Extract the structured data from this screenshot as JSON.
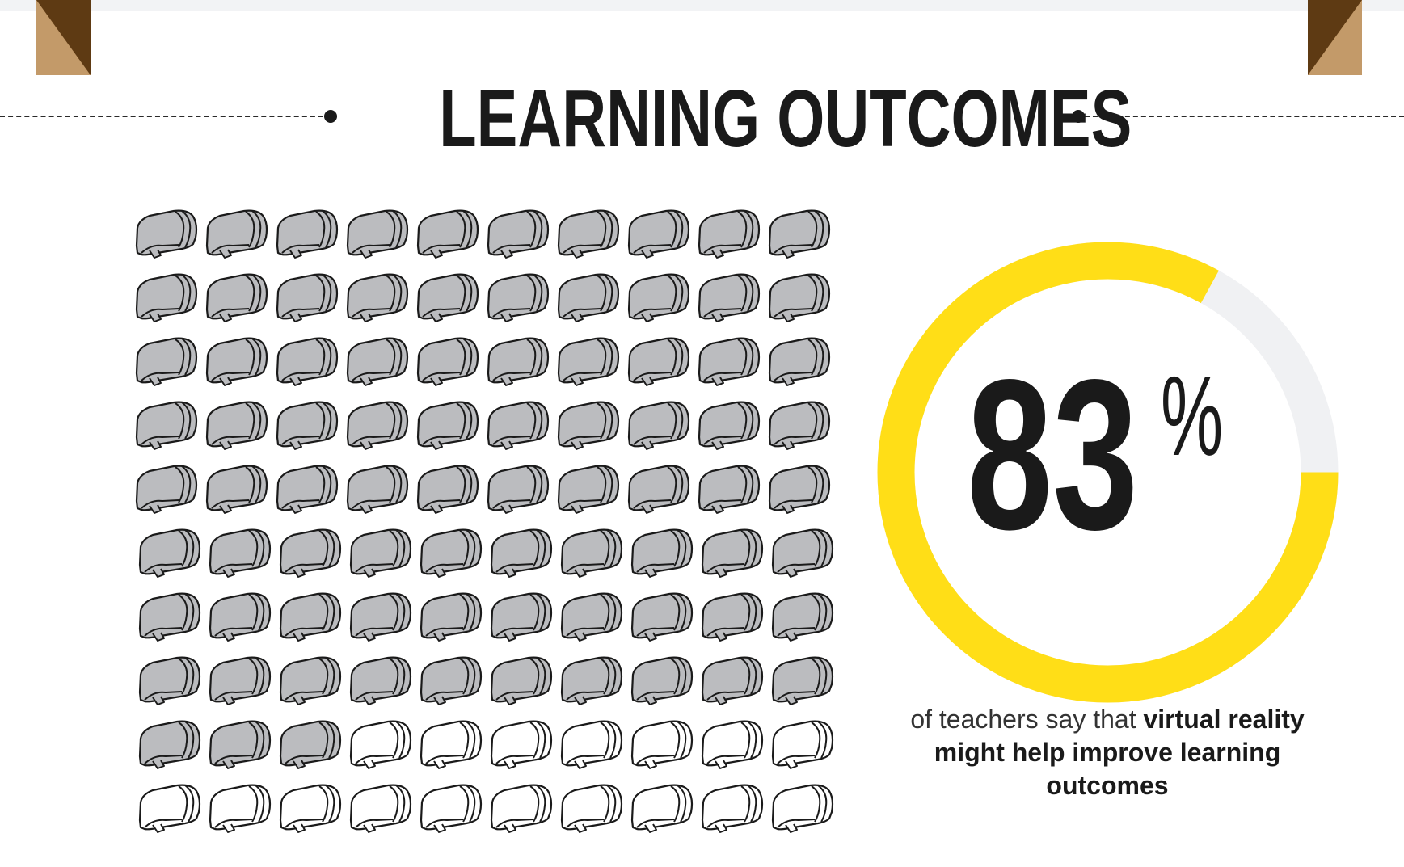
{
  "title": "LEARNING OUTCOMES",
  "stat": {
    "number": "83",
    "percent_sign": "%",
    "value_percent": 83
  },
  "caption": {
    "light": "of teachers say that ",
    "bold": "virtual reality might help improve learning outcomes"
  },
  "icon_grid": {
    "icon": "vr-headset-icon",
    "total": 100,
    "filled": 83,
    "columns": 10
  },
  "colors": {
    "ring_fill": "#FFDE17",
    "ring_track": "#F0F1F3",
    "icon_filled": "#BBBCBF",
    "icon_empty": "#FFFFFF",
    "ribbon_dark": "#5E3A13",
    "ribbon_light": "#C39A69",
    "text": "#1A1A1A"
  }
}
